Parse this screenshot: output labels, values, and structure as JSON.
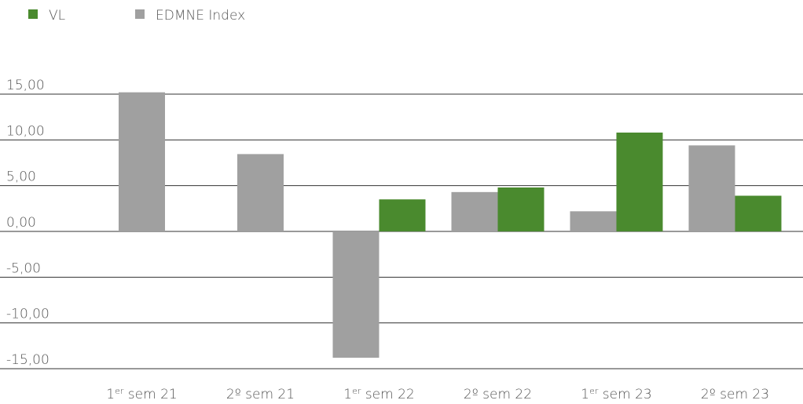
{
  "chart_data": {
    "type": "bar",
    "categories": [
      "1er sem 21",
      "2º sem 21",
      "1er sem 22",
      "2º sem 22",
      "1er sem 23",
      "2º sem 23"
    ],
    "series": [
      {
        "name": "VL",
        "color": "#4a8a2e",
        "values": [
          null,
          null,
          3.5,
          4.8,
          10.8,
          3.9
        ]
      },
      {
        "name": "EDMNE Index",
        "color": "#a0a0a0",
        "values": [
          15.2,
          8.45,
          -13.8,
          4.3,
          2.2,
          9.4
        ]
      }
    ],
    "ylim": [
      -15,
      15
    ],
    "yticks": [
      {
        "value": 15,
        "label": "15,00"
      },
      {
        "value": 10,
        "label": "10,00"
      },
      {
        "value": 5,
        "label": "5,00"
      },
      {
        "value": 0,
        "label": "0,00"
      },
      {
        "value": -5,
        "label": "-5,00"
      },
      {
        "value": -10,
        "label": "-10,00"
      },
      {
        "value": -15,
        "label": "-15,00"
      }
    ],
    "grid": true,
    "legend": "top-left"
  }
}
